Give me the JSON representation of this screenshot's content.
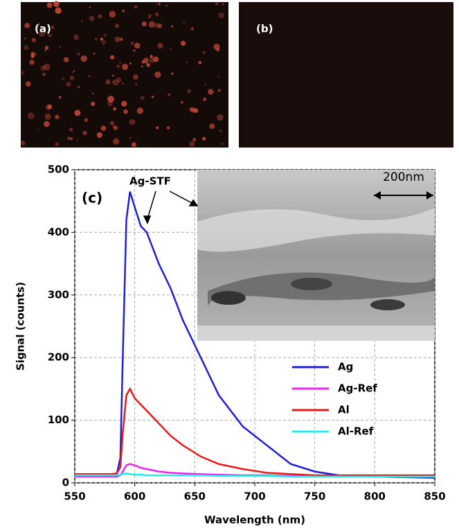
{
  "panels": {
    "a": "(a)",
    "b": "(b)"
  },
  "chart_data": {
    "type": "line",
    "xlabel": "Wavelength (nm)",
    "ylabel": "Signal (counts)",
    "annotations": [
      "(c)",
      "Ag-STF"
    ],
    "scale_bar": "200nm",
    "x": [
      550,
      580,
      585,
      588,
      590,
      593,
      596,
      600,
      605,
      610,
      620,
      630,
      640,
      655,
      670,
      690,
      710,
      730,
      750,
      770,
      800,
      850
    ],
    "series": [
      {
        "name": "Ag",
        "color": "#1f1fd8",
        "values": [
          12,
          12,
          14,
          40,
          200,
          420,
          465,
          440,
          410,
          400,
          350,
          310,
          260,
          200,
          140,
          90,
          60,
          30,
          18,
          12,
          10,
          8
        ]
      },
      {
        "name": "Ag-Ref",
        "color": "#ee22ee",
        "values": [
          10,
          10,
          10,
          12,
          18,
          28,
          30,
          28,
          24,
          22,
          18,
          16,
          15,
          14,
          13,
          12,
          12,
          11,
          11,
          10,
          10,
          10
        ]
      },
      {
        "name": "Al",
        "color": "#e81818",
        "values": [
          14,
          14,
          15,
          25,
          80,
          140,
          150,
          135,
          125,
          115,
          95,
          75,
          60,
          42,
          30,
          22,
          16,
          14,
          12,
          12,
          12,
          12
        ]
      },
      {
        "name": "Al-Ref",
        "color": "#22eeee",
        "values": [
          12,
          12,
          12,
          13,
          14,
          15,
          14,
          13,
          13,
          12,
          12,
          12,
          12,
          12,
          11,
          11,
          11,
          10,
          10,
          10,
          10,
          10
        ]
      }
    ],
    "xlim": [
      550,
      850
    ],
    "xticks": [
      550,
      600,
      650,
      700,
      750,
      800,
      850
    ],
    "ylim": [
      0,
      500
    ],
    "yticks": [
      0,
      100,
      200,
      300,
      400,
      500
    ],
    "grid": true
  }
}
